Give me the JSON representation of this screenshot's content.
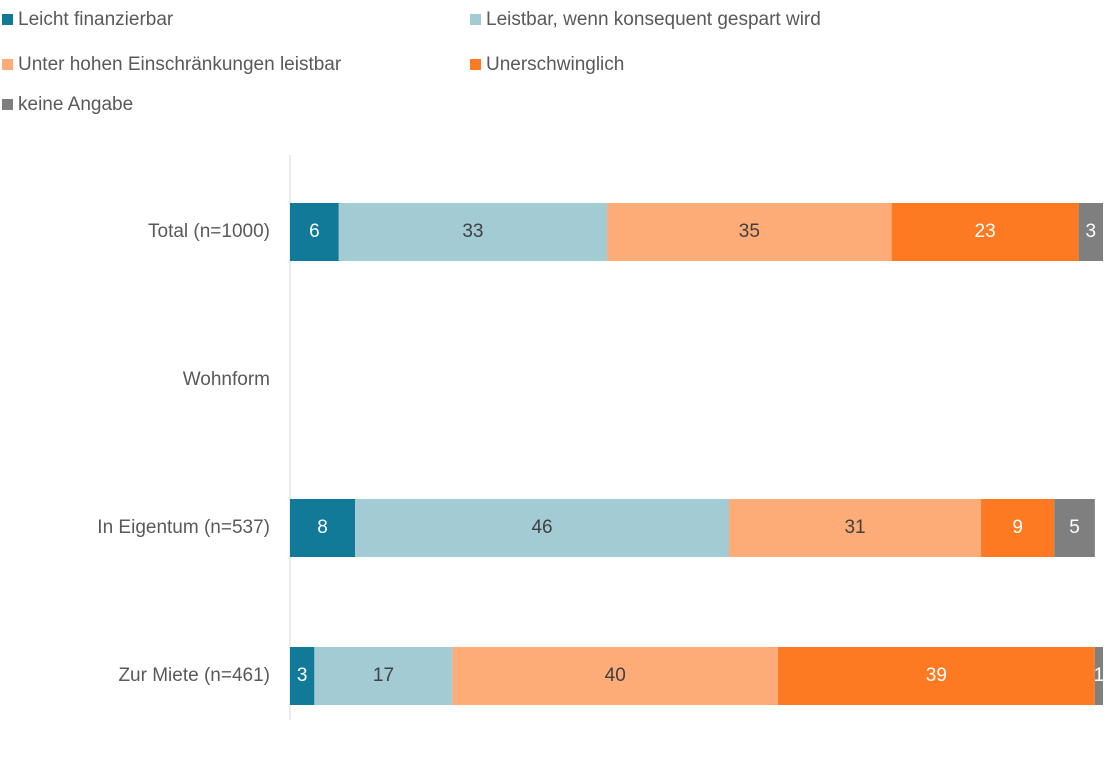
{
  "chart_data": {
    "type": "stacked_bar_horizontal",
    "categories": [
      "Total (n=1000)",
      "Wohnform",
      "In Eigentum (n=537)",
      "Zur Miete (n=461)"
    ],
    "series": [
      {
        "name": "Leicht finanzierbar",
        "color": "#127a99",
        "values": [
          6,
          null,
          8,
          3
        ]
      },
      {
        "name": "Leistbar, wenn konsequent gespart wird",
        "color": "#a2cbd4",
        "values": [
          33,
          null,
          46,
          17
        ]
      },
      {
        "name": "Unter hohen Einschränkungen leistbar",
        "color": "#fdac78",
        "values": [
          35,
          null,
          31,
          40
        ]
      },
      {
        "name": "Unerschwinglich",
        "color": "#fd7a22",
        "values": [
          23,
          null,
          9,
          39
        ]
      },
      {
        "name": "keine Angabe",
        "color": "#7f7f7f",
        "values": [
          3,
          null,
          5,
          1
        ]
      }
    ],
    "xlim": [
      0,
      100
    ],
    "legend": "top"
  }
}
